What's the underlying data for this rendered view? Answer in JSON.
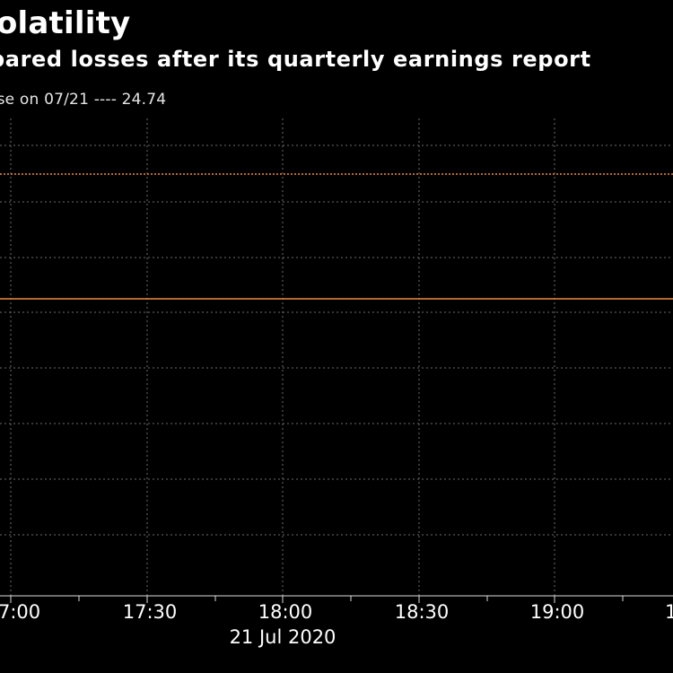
{
  "chart_data": {
    "type": "line",
    "title": "olatility",
    "subtitle": "pared losses after its quarterly earnings report",
    "legend_text": "ose on 07/21 ---- 24.74",
    "xlabel": "21 Jul 2020",
    "x_ticks": [
      "7:00",
      "17:30",
      "18:00",
      "18:30",
      "19:00",
      "1"
    ],
    "grid": true,
    "colors": {
      "background": "#000000",
      "series": "#f08a3e",
      "grid": "#6b6b6b",
      "axis": "#dddddd"
    }
  }
}
